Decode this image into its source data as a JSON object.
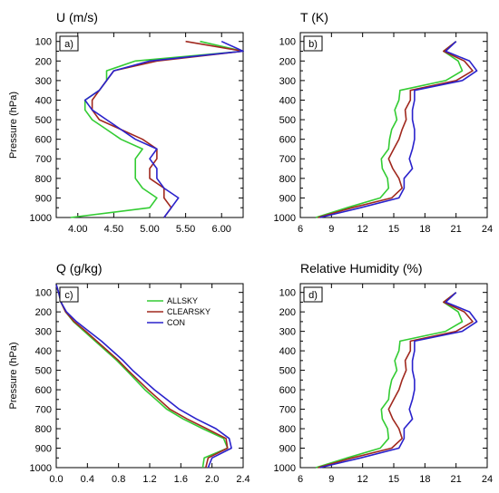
{
  "figure": {
    "legend": [
      {
        "name": "ALLSKY",
        "color": "#33cc33"
      },
      {
        "name": "CLEARSKY",
        "color": "#a0281e"
      },
      {
        "name": "CON",
        "color": "#2a22cc"
      }
    ]
  },
  "chart_data": [
    {
      "type": "line",
      "title": "U (m/s)",
      "panel_label": "a)",
      "ylabel": "Pressure (hPa)",
      "xlim": [
        3.7,
        6.3
      ],
      "xticks": [
        "4.00",
        "4.50",
        "5.00",
        "5.50",
        "6.00"
      ],
      "xtick_values": [
        4.0,
        4.5,
        5.0,
        5.5,
        6.0
      ],
      "ylim": [
        1000,
        55
      ],
      "yticks": [
        100,
        200,
        300,
        400,
        500,
        600,
        700,
        800,
        900,
        1000
      ],
      "y": [
        100,
        150,
        200,
        250,
        300,
        350,
        400,
        450,
        500,
        550,
        600,
        650,
        700,
        750,
        800,
        850,
        900,
        950,
        1000
      ],
      "series": [
        {
          "name": "ALLSKY",
          "color": "#33cc33",
          "x": [
            5.7,
            6.3,
            4.8,
            4.4,
            4.4,
            4.3,
            4.1,
            4.1,
            4.2,
            4.4,
            4.6,
            4.9,
            4.8,
            4.8,
            4.8,
            4.9,
            5.1,
            5.0,
            3.9
          ]
        },
        {
          "name": "CLEARSKY",
          "color": "#a0281e",
          "x": [
            5.5,
            6.3,
            5.1,
            4.5,
            4.4,
            4.3,
            4.2,
            4.2,
            4.3,
            4.6,
            4.9,
            5.1,
            5.1,
            5.0,
            5.0,
            5.2,
            5.2,
            5.3,
            5.2
          ]
        },
        {
          "name": "CON",
          "color": "#2a22cc",
          "x": [
            6.0,
            6.3,
            5.0,
            4.5,
            4.4,
            4.3,
            4.1,
            4.2,
            4.4,
            4.6,
            4.8,
            5.1,
            5.0,
            5.1,
            5.1,
            5.2,
            5.4,
            5.3,
            5.2
          ]
        }
      ]
    },
    {
      "type": "line",
      "title": "T (K)",
      "panel_label": "b)",
      "ylabel": "",
      "xlim": [
        6,
        24
      ],
      "xticks": [
        "6",
        "9",
        "12",
        "15",
        "18",
        "21",
        "24"
      ],
      "xtick_values": [
        6,
        9,
        12,
        15,
        18,
        21,
        24
      ],
      "ylim": [
        1000,
        55
      ],
      "yticks": [
        100,
        200,
        300,
        400,
        500,
        600,
        700,
        800,
        900,
        1000
      ],
      "y": [
        100,
        150,
        200,
        250,
        300,
        350,
        400,
        450,
        500,
        550,
        600,
        650,
        700,
        750,
        800,
        850,
        900,
        950,
        1000
      ],
      "series": [
        {
          "name": "ALLSKY",
          "color": "#33cc33",
          "x": [
            21.0,
            19.8,
            21.2,
            21.6,
            20.0,
            15.6,
            15.5,
            15.1,
            15.3,
            14.8,
            14.6,
            14.5,
            13.8,
            13.9,
            14.4,
            14.5,
            13.7,
            10.5,
            7.5
          ]
        },
        {
          "name": "CLEARSKY",
          "color": "#a0281e",
          "x": [
            21.0,
            19.8,
            21.8,
            22.6,
            21.0,
            16.6,
            16.6,
            16.1,
            16.2,
            15.8,
            15.5,
            15.0,
            14.5,
            14.9,
            15.5,
            15.8,
            14.8,
            11.0,
            7.7
          ]
        },
        {
          "name": "CON",
          "color": "#2a22cc",
          "x": [
            21.0,
            20.0,
            22.3,
            23.0,
            21.6,
            17.0,
            17.0,
            16.8,
            16.8,
            17.0,
            17.0,
            16.8,
            16.5,
            16.8,
            16.0,
            16.0,
            15.5,
            11.8,
            7.9
          ]
        }
      ]
    },
    {
      "type": "line",
      "title": "Q (g/kg)",
      "panel_label": "c)",
      "ylabel": "Pressure (hPa)",
      "xlim": [
        0.0,
        2.4
      ],
      "xticks": [
        "0.0",
        "0.4",
        "0.8",
        "1.2",
        "1.6",
        "2.0",
        "2.4"
      ],
      "xtick_values": [
        0.0,
        0.4,
        0.8,
        1.2,
        1.6,
        2.0,
        2.4
      ],
      "ylim": [
        1000,
        55
      ],
      "yticks": [
        100,
        200,
        300,
        400,
        500,
        600,
        700,
        800,
        900,
        1000
      ],
      "y": [
        60,
        100,
        150,
        200,
        250,
        300,
        350,
        400,
        450,
        500,
        550,
        600,
        650,
        700,
        750,
        800,
        850,
        900,
        950,
        1000
      ],
      "series": [
        {
          "name": "ALLSKY",
          "color": "#33cc33",
          "x": [
            0.0,
            0.03,
            0.06,
            0.12,
            0.22,
            0.36,
            0.5,
            0.64,
            0.78,
            0.9,
            1.02,
            1.14,
            1.28,
            1.42,
            1.63,
            1.88,
            2.15,
            2.2,
            1.9,
            1.88
          ]
        },
        {
          "name": "CLEARSKY",
          "color": "#a0281e",
          "x": [
            0.0,
            0.03,
            0.06,
            0.12,
            0.23,
            0.38,
            0.52,
            0.66,
            0.8,
            0.92,
            1.05,
            1.18,
            1.32,
            1.46,
            1.68,
            1.93,
            2.18,
            2.2,
            1.95,
            1.92
          ]
        },
        {
          "name": "CON",
          "color": "#2a22cc",
          "x": [
            0.0,
            0.03,
            0.06,
            0.13,
            0.26,
            0.42,
            0.58,
            0.72,
            0.86,
            0.98,
            1.12,
            1.26,
            1.42,
            1.58,
            1.8,
            2.05,
            2.22,
            2.25,
            2.0,
            1.95
          ]
        }
      ]
    },
    {
      "type": "line",
      "title": "Relative Humidity (%)",
      "panel_label": "d)",
      "ylabel": "",
      "xlim": [
        6,
        24
      ],
      "xticks": [
        "6",
        "9",
        "12",
        "15",
        "18",
        "21",
        "24"
      ],
      "xtick_values": [
        6,
        9,
        12,
        15,
        18,
        21,
        24
      ],
      "ylim": [
        1000,
        55
      ],
      "yticks": [
        100,
        200,
        300,
        400,
        500,
        600,
        700,
        800,
        900,
        1000
      ],
      "y": [
        100,
        150,
        200,
        250,
        300,
        350,
        400,
        450,
        500,
        550,
        600,
        650,
        700,
        750,
        800,
        850,
        900,
        950,
        1000
      ],
      "series": [
        {
          "name": "ALLSKY",
          "color": "#33cc33",
          "x": [
            21.0,
            19.8,
            21.2,
            21.6,
            20.0,
            15.6,
            15.5,
            15.1,
            15.3,
            14.8,
            14.6,
            14.5,
            13.8,
            13.9,
            14.4,
            14.5,
            13.7,
            10.5,
            7.5
          ]
        },
        {
          "name": "CLEARSKY",
          "color": "#a0281e",
          "x": [
            21.0,
            19.8,
            21.8,
            22.6,
            21.0,
            16.6,
            16.6,
            16.1,
            16.2,
            15.8,
            15.5,
            15.0,
            14.5,
            14.9,
            15.5,
            15.8,
            14.8,
            11.0,
            7.7
          ]
        },
        {
          "name": "CON",
          "color": "#2a22cc",
          "x": [
            21.0,
            20.0,
            22.3,
            23.0,
            21.6,
            17.0,
            17.0,
            16.8,
            16.8,
            17.0,
            17.0,
            16.8,
            16.5,
            16.8,
            16.0,
            16.0,
            15.5,
            11.8,
            7.9
          ]
        }
      ]
    }
  ]
}
